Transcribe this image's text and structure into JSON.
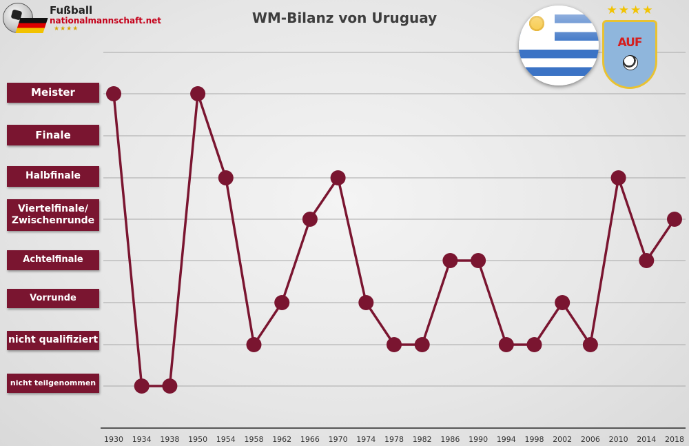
{
  "brand": {
    "line1": "Fußball",
    "line2": "nationalmannschaft.net",
    "stars": "★★★★"
  },
  "crest": {
    "stars": "★★★★",
    "letters": "AUF"
  },
  "colors": {
    "line": "#7a1530",
    "marker": "#7a1530",
    "label_bg": "#7a1530",
    "grid": "#a8a8a8",
    "axis": "#555555"
  },
  "chart_data": {
    "type": "line",
    "title": "WM-Bilanz von Uruguay",
    "xlabel": "",
    "ylabel": "",
    "categories": [
      "1930",
      "1934",
      "1938",
      "1950",
      "1954",
      "1958",
      "1962",
      "1966",
      "1970",
      "1974",
      "1978",
      "1982",
      "1986",
      "1990",
      "1994",
      "1998",
      "2002",
      "2006",
      "2010",
      "2014",
      "2018"
    ],
    "y_categories": [
      "nicht teilgenommen",
      "nicht qualifiziert",
      "Vorrunde",
      "Achtelfinale",
      "Viertelfinale/\nZwischenrunde",
      "Halbfinale",
      "Finale",
      "Meister"
    ],
    "series": [
      {
        "values": [
          "Meister",
          "nicht teilgenommen",
          "nicht teilgenommen",
          "Meister",
          "Halbfinale",
          "nicht qualifiziert",
          "Vorrunde",
          "Viertelfinale/\nZwischenrunde",
          "Halbfinale",
          "Vorrunde",
          "nicht qualifiziert",
          "nicht qualifiziert",
          "Achtelfinale",
          "Achtelfinale",
          "nicht qualifiziert",
          "nicht qualifiziert",
          "Vorrunde",
          "nicht qualifiziert",
          "Halbfinale",
          "Achtelfinale",
          "Viertelfinale/\nZwischenrunde"
        ]
      }
    ],
    "grid": true,
    "legend": "none"
  }
}
